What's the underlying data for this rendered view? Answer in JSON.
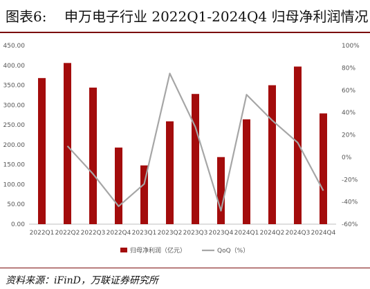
{
  "header": {
    "figure_label": "图表6:",
    "title": "申万电子行业 2022Q1-2024Q4 归母净利润情况"
  },
  "source": "资料来源：iFinD，万联证券研究所",
  "chart_data": {
    "type": "bar",
    "categories": [
      "2022Q1",
      "2022Q2",
      "2022Q3",
      "2022Q4",
      "2023Q1",
      "2023Q2",
      "2023Q3",
      "2023Q4",
      "2024Q1",
      "2024Q2",
      "2024Q3",
      "2024Q4"
    ],
    "series": [
      {
        "name": "归母净利润（亿元）",
        "type": "bar",
        "axis": "left",
        "color": "#a30c0c",
        "values": [
          368,
          406,
          344,
          193,
          148,
          259,
          328,
          169,
          264,
          350,
          397,
          279
        ]
      },
      {
        "name": "QoQ（%）",
        "type": "line",
        "axis": "right",
        "color": "#a6a6a6",
        "values": [
          null,
          10,
          -15,
          -44,
          -24,
          75,
          27,
          -48,
          56,
          33,
          13,
          -30
        ]
      }
    ],
    "ylim_left": [
      0,
      450
    ],
    "yticks_left": [
      "0.00",
      "50.00",
      "100.00",
      "150.00",
      "200.00",
      "250.00",
      "300.00",
      "350.00",
      "400.00",
      "450.00"
    ],
    "ylim_right": [
      -60,
      100
    ],
    "yticks_right": [
      "-60%",
      "-40%",
      "-20%",
      "0%",
      "20%",
      "40%",
      "60%",
      "80%",
      "100%"
    ],
    "grid": false,
    "legend_position": "bottom"
  }
}
